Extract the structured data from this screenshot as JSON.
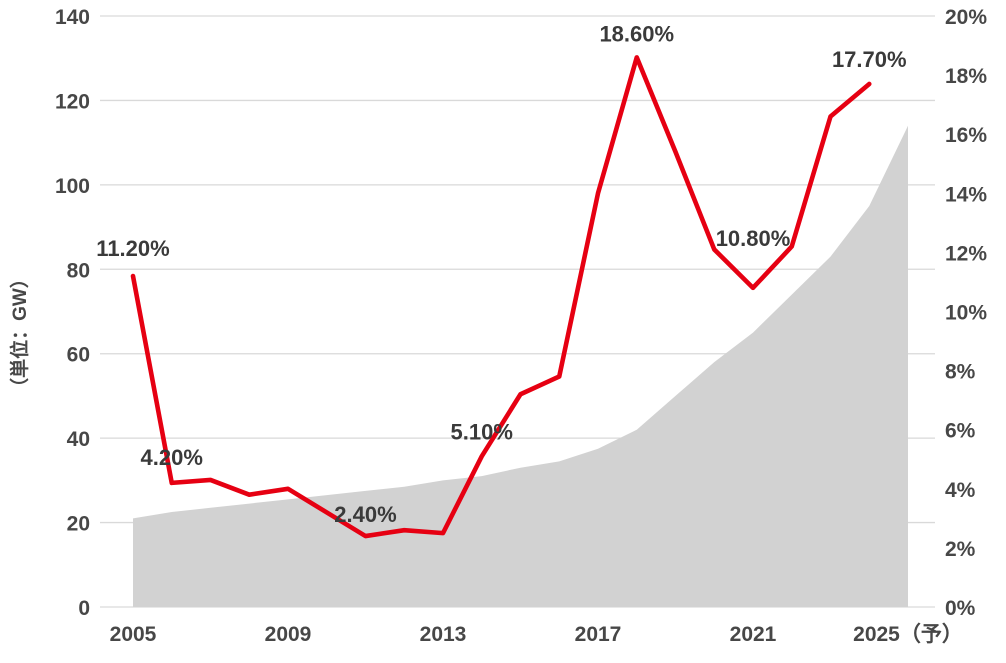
{
  "page": {
    "background": "#ffffff"
  },
  "chart_data": {
    "type": "area",
    "subtype": "area-plus-line-combo",
    "title": "",
    "years": [
      2005,
      2006,
      2007,
      2008,
      2009,
      2010,
      2011,
      2012,
      2013,
      2014,
      2015,
      2016,
      2017,
      2018,
      2019,
      2020,
      2021,
      2022,
      2023,
      2024,
      2025
    ],
    "series": [
      {
        "name": "cumulative-capacity-gw",
        "type": "area",
        "axis": "left",
        "color": "#d2d2d2",
        "values": [
          21,
          22.5,
          23.5,
          24.5,
          25.5,
          26.5,
          27.5,
          28.5,
          30,
          31,
          33,
          34.5,
          37.5,
          42,
          50,
          58,
          65,
          74,
          83,
          95,
          114
        ]
      },
      {
        "name": "growth-rate-percent",
        "type": "line",
        "axis": "right",
        "color": "#e60012",
        "values": [
          11.2,
          4.2,
          4.3,
          3.8,
          4.0,
          3.2,
          2.4,
          2.6,
          2.5,
          5.1,
          7.2,
          7.8,
          14.0,
          18.6,
          15.4,
          12.1,
          10.8,
          12.2,
          16.6,
          17.7,
          null
        ]
      }
    ],
    "annotations": [
      {
        "year": 2005,
        "text": "11.20%"
      },
      {
        "year": 2006,
        "text": "4.20%"
      },
      {
        "year": 2011,
        "text": "2.40%"
      },
      {
        "year": 2014,
        "text": "5.10%"
      },
      {
        "year": 2018,
        "text": "18.60%"
      },
      {
        "year": 2021,
        "text": "10.80%"
      },
      {
        "year": 2024,
        "text": "17.70%"
      }
    ],
    "axes": {
      "left": {
        "title": "（単位：GW）",
        "min": 0,
        "max": 140,
        "step": 20,
        "values": [
          140,
          120,
          100,
          80,
          60,
          40,
          20,
          0
        ],
        "ticks": [
          "140",
          "120",
          "100",
          "80",
          "60",
          "40",
          "20",
          "0"
        ]
      },
      "right": {
        "min": 0,
        "max": 20,
        "step": 2,
        "values": [
          20,
          18,
          16,
          14,
          12,
          10,
          8,
          6,
          4,
          2,
          0
        ],
        "ticks": [
          "20%",
          "18%",
          "16%",
          "14%",
          "12%",
          "10%",
          "8%",
          "6%",
          "4%",
          "2%",
          "0%"
        ]
      },
      "x": {
        "ticks": [
          {
            "label": "2005",
            "year": 2005
          },
          {
            "label": "2009",
            "year": 2009
          },
          {
            "label": "2013",
            "year": 2013
          },
          {
            "label": "2017",
            "year": 2017
          },
          {
            "label": "2021",
            "year": 2021
          },
          {
            "label": "2025（予）",
            "year": 2025
          }
        ]
      }
    },
    "grid": {
      "show": true,
      "color": "#d9d9d9",
      "follows": "left-axis"
    }
  }
}
